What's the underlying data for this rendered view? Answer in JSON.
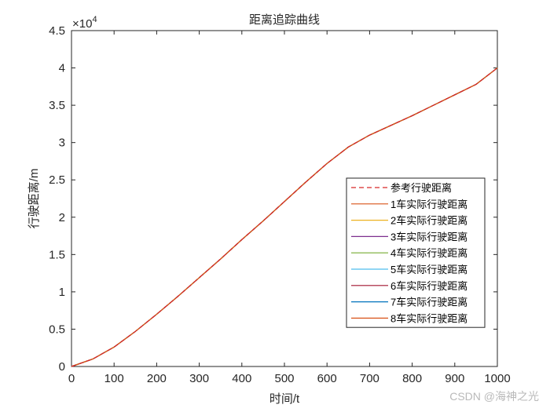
{
  "chart_data": {
    "type": "line",
    "title": "距离追踪曲线",
    "xlabel": "时间/t",
    "ylabel": "行驶距离/m",
    "y_exponent_label": "×10^4",
    "xlim": [
      0,
      1000
    ],
    "ylim": [
      0,
      45000
    ],
    "xticks": [
      0,
      100,
      200,
      300,
      400,
      500,
      600,
      700,
      800,
      900,
      1000
    ],
    "yticks": [
      0,
      0.5,
      1,
      1.5,
      2,
      2.5,
      3,
      3.5,
      4,
      4.5
    ],
    "grid": false,
    "legend_position": "east (lower-right of center)",
    "x": [
      0,
      50,
      100,
      150,
      200,
      250,
      300,
      350,
      400,
      450,
      500,
      550,
      600,
      650,
      700,
      750,
      800,
      850,
      900,
      950,
      1000
    ],
    "series": [
      {
        "name": "参考行驶距离",
        "color": "#d62728",
        "style": "dashed",
        "values": [
          0,
          1000,
          2600,
          4700,
          7000,
          9400,
          11900,
          14400,
          17000,
          19500,
          22100,
          24700,
          27200,
          29400,
          31000,
          32300,
          33600,
          35000,
          36400,
          37800,
          40000
        ]
      },
      {
        "name": "1车实际行驶距离",
        "color": "#d95319",
        "style": "solid",
        "values": [
          0,
          1000,
          2600,
          4700,
          7000,
          9400,
          11900,
          14400,
          17000,
          19500,
          22100,
          24700,
          27200,
          29400,
          31000,
          32300,
          33600,
          35000,
          36400,
          37800,
          40000
        ]
      },
      {
        "name": "2车实际行驶距离",
        "color": "#edb120",
        "style": "solid",
        "values": [
          0,
          1000,
          2600,
          4700,
          7000,
          9400,
          11900,
          14400,
          17000,
          19500,
          22100,
          24700,
          27200,
          29400,
          31000,
          32300,
          33600,
          35000,
          36400,
          37800,
          40000
        ]
      },
      {
        "name": "3车实际行驶距离",
        "color": "#7e2f8e",
        "style": "solid",
        "values": [
          0,
          1000,
          2600,
          4700,
          7000,
          9400,
          11900,
          14400,
          17000,
          19500,
          22100,
          24700,
          27200,
          29400,
          31000,
          32300,
          33600,
          35000,
          36400,
          37800,
          40000
        ]
      },
      {
        "name": "4车实际行驶距离",
        "color": "#77ac30",
        "style": "solid",
        "values": [
          0,
          1000,
          2600,
          4700,
          7000,
          9400,
          11900,
          14400,
          17000,
          19500,
          22100,
          24700,
          27200,
          29400,
          31000,
          32300,
          33600,
          35000,
          36400,
          37800,
          40000
        ]
      },
      {
        "name": "5车实际行驶距离",
        "color": "#4dbeee",
        "style": "solid",
        "values": [
          0,
          1000,
          2600,
          4700,
          7000,
          9400,
          11900,
          14400,
          17000,
          19500,
          22100,
          24700,
          27200,
          29400,
          31000,
          32300,
          33600,
          35000,
          36400,
          37800,
          40000
        ]
      },
      {
        "name": "6车实际行驶距离",
        "color": "#a2142f",
        "style": "solid",
        "values": [
          0,
          1000,
          2600,
          4700,
          7000,
          9400,
          11900,
          14400,
          17000,
          19500,
          22100,
          24700,
          27200,
          29400,
          31000,
          32300,
          33600,
          35000,
          36400,
          37800,
          40000
        ]
      },
      {
        "name": "7车实际行驶距离",
        "color": "#0072bd",
        "style": "solid",
        "values": [
          0,
          1000,
          2600,
          4700,
          7000,
          9400,
          11900,
          14400,
          17000,
          19500,
          22100,
          24700,
          27200,
          29400,
          31000,
          32300,
          33600,
          35000,
          36400,
          37800,
          40000
        ]
      },
      {
        "name": "8车实际行驶距离",
        "color": "#d95319",
        "style": "solid",
        "values": [
          0,
          1000,
          2600,
          4700,
          7000,
          9400,
          11900,
          14400,
          17000,
          19500,
          22100,
          24700,
          27200,
          29400,
          31000,
          32300,
          33600,
          35000,
          36400,
          37800,
          40000
        ]
      }
    ]
  },
  "labels": {
    "title": "距离追踪曲线",
    "xlabel": "时间/t",
    "ylabel": "行驶距离/m",
    "exp_base": "×10",
    "exp_power": "4",
    "watermark": "CSDN @海神之光"
  }
}
